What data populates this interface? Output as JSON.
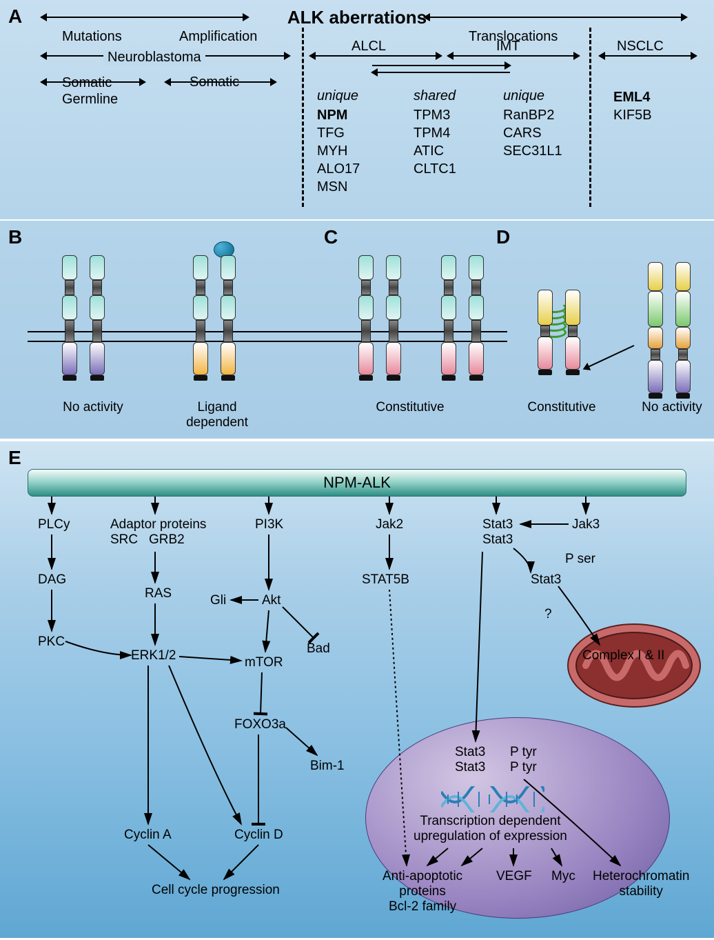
{
  "panelA": {
    "title": "ALK aberrations",
    "type": "infographic",
    "headers": {
      "mutations": "Mutations",
      "amplification": "Amplification",
      "translocations": "Translocations",
      "neuroblastoma": "Neuroblastoma",
      "alcl": "ALCL",
      "imt": "IMT",
      "nsclc": "NSCLC",
      "somatic_germline": "Somatic\nGermline",
      "somatic": "Somatic"
    },
    "columns": {
      "alcl_unique_label": "unique",
      "shared_label": "shared",
      "imt_unique_label": "unique",
      "alcl_unique": [
        "NPM",
        "TFG",
        "MYH",
        "ALO17",
        "MSN"
      ],
      "shared": [
        "TPM3",
        "TPM4",
        "ATIC",
        "CLTC1"
      ],
      "imt_unique": [
        "RanBP2",
        "CARS",
        "SEC31L1"
      ],
      "nsclc": [
        "EML4",
        "KIF5B"
      ]
    },
    "bold_items": [
      "NPM",
      "EML4"
    ],
    "fontsize_header": 20,
    "fontsize_title": 26,
    "background_gradient": [
      "#c7dff0",
      "#b4d4ea"
    ]
  },
  "panelBCD": {
    "B": {
      "labels": [
        "No activity",
        "Ligand\ndependent"
      ]
    },
    "C": {
      "label": "Constitutive"
    },
    "D": {
      "labels": [
        "Constitutive",
        "No activity"
      ]
    },
    "colors": {
      "extracellular_domain": "#9fe0da",
      "stem": "#5a5a5a",
      "intracellular_inactive": "#7a6fb8",
      "intracellular_active_ligand": "#f2b544",
      "intracellular_constitutive": "#e78a9d",
      "ligand": "#2a8fb5",
      "coil": "#3a9b2a",
      "fusion_top_yellow": "#e6cf4a",
      "fusion_mid_green": "#7bc96f",
      "fusion_mid_orange": "#e6a23c"
    },
    "background_gradient": [
      "#b4d4ea",
      "#a8cce6"
    ],
    "fontsize_label": 19
  },
  "panelE": {
    "type": "network",
    "title": "NPM-ALK",
    "background_gradient": [
      "#cfe4f2",
      "#a8cee8",
      "#8bc0e2",
      "#5fa7d3"
    ],
    "bar_gradient": [
      "#f4fbf8",
      "#8fd0c6",
      "#2f8e84"
    ],
    "nucleus_gradient": [
      "#d2c6e3",
      "#9a86c2",
      "#6b5aa0"
    ],
    "mito_color": "#8b2f2f",
    "fontsize_node": 19,
    "nodes": {
      "plcy": "PLCy",
      "dag": "DAG",
      "pkc": "PKC",
      "adaptor": "Adaptor proteins\nSRC   GRB2",
      "ras": "RAS",
      "erk": "ERK1/2",
      "pi3k": "PI3K",
      "gli": "Gli",
      "akt": "Akt",
      "bad": "Bad",
      "mtor": "mTOR",
      "foxo": "FOXO3a",
      "bim": "Bim-1",
      "cyclinA": "Cyclin A",
      "cyclinD": "Cyclin D",
      "ccp": "Cell cycle progression",
      "jak2": "Jak2",
      "stat5b": "STAT5B",
      "stat3_1": "Stat3\nStat3",
      "jak3": "Jak3",
      "pser": "P ser",
      "stat3_mid": "Stat3",
      "q": "?",
      "complex": "Complex I & II",
      "stat3_nuc": "Stat3\nStat3",
      "ptyr": "P tyr\nP tyr",
      "transcription": "Transcription dependent\nupregulation of expression",
      "antiapop": "Anti-apoptotic\nproteins\nBcl-2 family",
      "vegf": "VEGF",
      "myc": "Myc",
      "hetero": "Heterochromatin\nstability"
    },
    "edges": [
      {
        "from": "bar",
        "to": "plcy",
        "type": "arrow"
      },
      {
        "from": "plcy",
        "to": "dag",
        "type": "arrow"
      },
      {
        "from": "dag",
        "to": "pkc",
        "type": "arrow"
      },
      {
        "from": "pkc",
        "to": "erk",
        "type": "arrow"
      },
      {
        "from": "bar",
        "to": "adaptor",
        "type": "arrow"
      },
      {
        "from": "adaptor",
        "to": "ras",
        "type": "arrow"
      },
      {
        "from": "ras",
        "to": "erk",
        "type": "arrow"
      },
      {
        "from": "erk",
        "to": "mtor",
        "type": "arrow"
      },
      {
        "from": "erk",
        "to": "cyclinA",
        "type": "arrow"
      },
      {
        "from": "erk",
        "to": "cyclinD",
        "type": "arrow"
      },
      {
        "from": "bar",
        "to": "pi3k",
        "type": "arrow"
      },
      {
        "from": "pi3k",
        "to": "akt",
        "type": "arrow"
      },
      {
        "from": "akt",
        "to": "gli",
        "type": "arrow",
        "reverse": true
      },
      {
        "from": "akt",
        "to": "mtor",
        "type": "arrow"
      },
      {
        "from": "akt",
        "to": "bad",
        "type": "inhibit"
      },
      {
        "from": "mtor",
        "to": "foxo",
        "type": "inhibit"
      },
      {
        "from": "foxo",
        "to": "cyclinD",
        "type": "inhibit"
      },
      {
        "from": "foxo",
        "to": "bim",
        "type": "arrow"
      },
      {
        "from": "cyclinA",
        "to": "ccp",
        "type": "arrow"
      },
      {
        "from": "cyclinD",
        "to": "ccp",
        "type": "arrow"
      },
      {
        "from": "bar",
        "to": "jak2",
        "type": "arrow"
      },
      {
        "from": "jak2",
        "to": "stat5b",
        "type": "arrow"
      },
      {
        "from": "stat5b",
        "to": "antiapop",
        "type": "arrow",
        "style": "dotted"
      },
      {
        "from": "bar",
        "to": "stat3_1",
        "type": "arrow"
      },
      {
        "from": "bar",
        "to": "jak3",
        "type": "arrow"
      },
      {
        "from": "jak3",
        "to": "stat3_1",
        "type": "arrow"
      },
      {
        "from": "stat3_1",
        "to": "stat3_mid",
        "type": "arrow"
      },
      {
        "from": "stat3_mid",
        "to": "complex",
        "type": "arrow"
      },
      {
        "from": "stat3_1",
        "to": "stat3_nuc",
        "type": "arrow"
      },
      {
        "from": "stat3_nuc",
        "to": "hetero",
        "type": "arrow"
      },
      {
        "from": "transcription",
        "to": "antiapop",
        "type": "arrow"
      },
      {
        "from": "transcription",
        "to": "vegf",
        "type": "arrow"
      },
      {
        "from": "transcription",
        "to": "myc",
        "type": "arrow"
      }
    ]
  }
}
